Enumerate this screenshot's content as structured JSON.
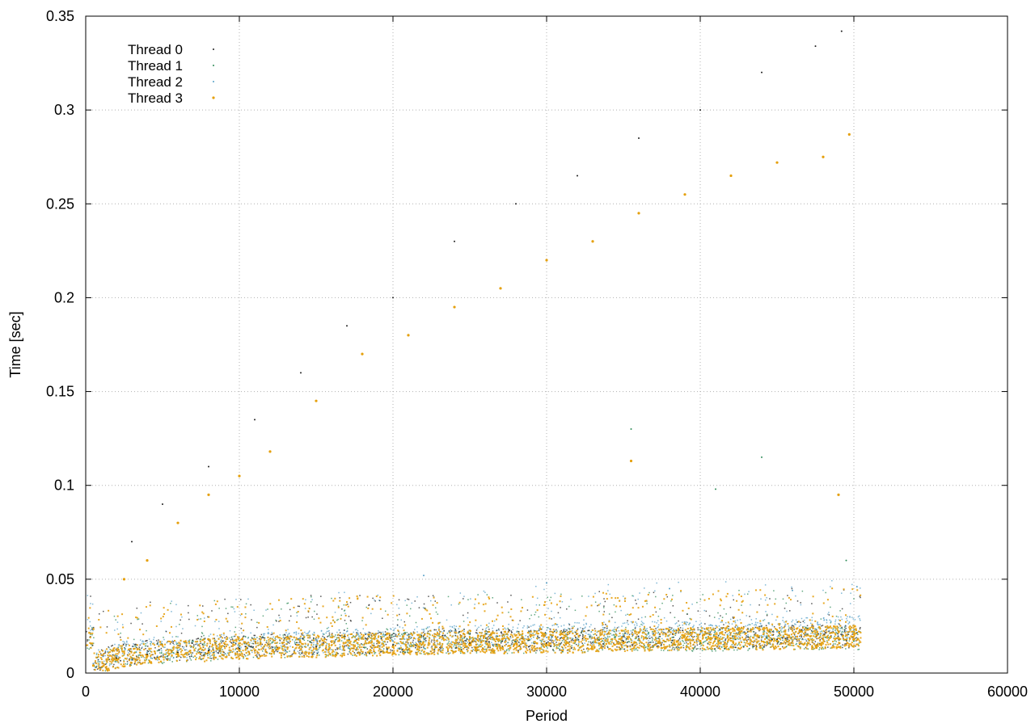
{
  "chart_data": {
    "type": "scatter",
    "title": "",
    "xlabel": "Period",
    "ylabel": "Time [sec]",
    "xlim": [
      0,
      60000
    ],
    "ylim": [
      0,
      0.35
    ],
    "xticks": [
      0,
      10000,
      20000,
      30000,
      40000,
      50000,
      60000
    ],
    "yticks": [
      0,
      0.05,
      0.1,
      0.15,
      0.2,
      0.25,
      0.3,
      0.35
    ],
    "xtick_labels": [
      "0",
      "10000",
      "20000",
      "30000",
      "40000",
      "50000",
      "60000"
    ],
    "ytick_labels": [
      "0",
      "0.05",
      "0.1",
      "0.15",
      "0.2",
      "0.25",
      "0.3",
      "0.35"
    ],
    "grid": true,
    "legend_position": "top-left",
    "series": [
      {
        "name": "Thread 0",
        "color": "#1f1f1f",
        "points": [
          [
            500,
            0.005
          ],
          [
            2000,
            0.008
          ],
          [
            4000,
            0.01
          ],
          [
            6000,
            0.011
          ],
          [
            8000,
            0.012
          ],
          [
            10000,
            0.013
          ],
          [
            15000,
            0.014
          ],
          [
            20000,
            0.015
          ],
          [
            25000,
            0.016
          ],
          [
            30000,
            0.016
          ],
          [
            35000,
            0.017
          ],
          [
            40000,
            0.017
          ],
          [
            45000,
            0.018
          ],
          [
            50000,
            0.018
          ],
          [
            3000,
            0.07
          ],
          [
            5000,
            0.09
          ],
          [
            8000,
            0.11
          ],
          [
            11000,
            0.135
          ],
          [
            14000,
            0.16
          ],
          [
            17000,
            0.185
          ],
          [
            20000,
            0.2
          ],
          [
            24000,
            0.23
          ],
          [
            28000,
            0.25
          ],
          [
            32000,
            0.265
          ],
          [
            36000,
            0.285
          ],
          [
            40000,
            0.3
          ],
          [
            44000,
            0.32
          ],
          [
            47500,
            0.334
          ],
          [
            49200,
            0.342
          ]
        ]
      },
      {
        "name": "Thread 1",
        "color": "#2e8b57",
        "points": [
          [
            500,
            0.004
          ],
          [
            2000,
            0.007
          ],
          [
            4000,
            0.009
          ],
          [
            6000,
            0.01
          ],
          [
            8000,
            0.011
          ],
          [
            10000,
            0.012
          ],
          [
            15000,
            0.013
          ],
          [
            20000,
            0.014
          ],
          [
            25000,
            0.015
          ],
          [
            30000,
            0.015
          ],
          [
            35000,
            0.016
          ],
          [
            40000,
            0.016
          ],
          [
            45000,
            0.017
          ],
          [
            50000,
            0.017
          ],
          [
            35500,
            0.13
          ],
          [
            41000,
            0.098
          ],
          [
            44000,
            0.115
          ],
          [
            49500,
            0.06
          ]
        ]
      },
      {
        "name": "Thread 2",
        "color": "#56a0c8",
        "points": [
          [
            500,
            0.005
          ],
          [
            2000,
            0.009
          ],
          [
            4000,
            0.011
          ],
          [
            6000,
            0.012
          ],
          [
            8000,
            0.013
          ],
          [
            10000,
            0.014
          ],
          [
            15000,
            0.015
          ],
          [
            20000,
            0.017
          ],
          [
            25000,
            0.018
          ],
          [
            30000,
            0.019
          ],
          [
            35000,
            0.02
          ],
          [
            40000,
            0.021
          ],
          [
            45000,
            0.022
          ],
          [
            50000,
            0.023
          ],
          [
            22000,
            0.052
          ],
          [
            30000,
            0.048
          ],
          [
            38000,
            0.045
          ],
          [
            46000,
            0.044
          ],
          [
            50200,
            0.046
          ]
        ]
      },
      {
        "name": "Thread 3",
        "color": "#e5a00d",
        "points": [
          [
            500,
            0.004
          ],
          [
            2000,
            0.007
          ],
          [
            4000,
            0.009
          ],
          [
            6000,
            0.01
          ],
          [
            8000,
            0.011
          ],
          [
            10000,
            0.012
          ],
          [
            15000,
            0.013
          ],
          [
            20000,
            0.014
          ],
          [
            25000,
            0.015
          ],
          [
            30000,
            0.015
          ],
          [
            35000,
            0.016
          ],
          [
            40000,
            0.017
          ],
          [
            45000,
            0.017
          ],
          [
            50000,
            0.018
          ],
          [
            2500,
            0.05
          ],
          [
            4000,
            0.06
          ],
          [
            6000,
            0.08
          ],
          [
            8000,
            0.095
          ],
          [
            10000,
            0.105
          ],
          [
            12000,
            0.118
          ],
          [
            15000,
            0.145
          ],
          [
            18000,
            0.17
          ],
          [
            21000,
            0.18
          ],
          [
            24000,
            0.195
          ],
          [
            27000,
            0.205
          ],
          [
            30000,
            0.22
          ],
          [
            33000,
            0.23
          ],
          [
            36000,
            0.245
          ],
          [
            39000,
            0.255
          ],
          [
            42000,
            0.265
          ],
          [
            45000,
            0.272
          ],
          [
            48000,
            0.275
          ],
          [
            49700,
            0.287
          ],
          [
            35500,
            0.113
          ],
          [
            49000,
            0.095
          ]
        ]
      }
    ]
  }
}
